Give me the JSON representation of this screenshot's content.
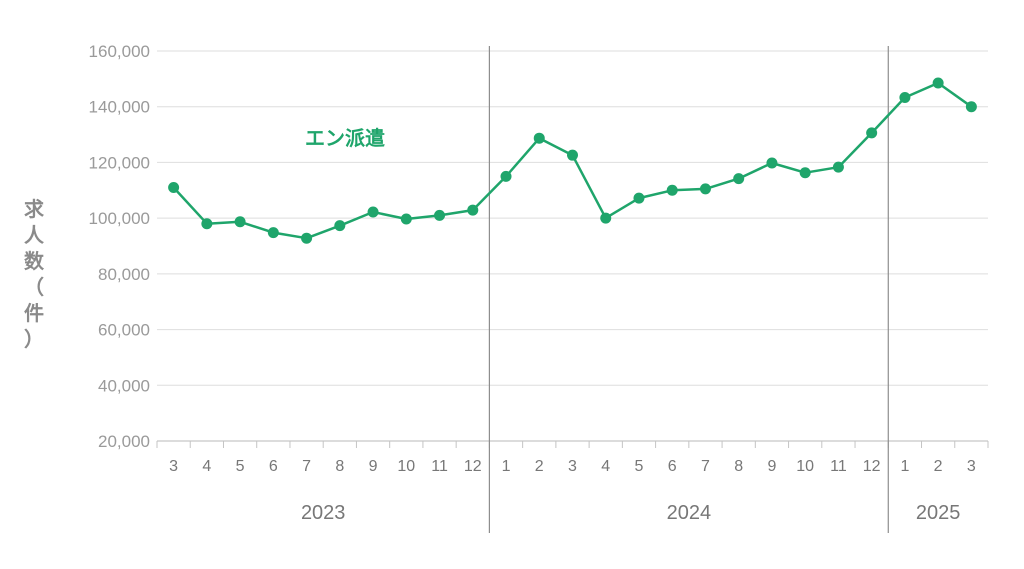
{
  "chart_data": {
    "type": "line",
    "ylabel": "求人数（件）",
    "ylabel_chars": [
      "求",
      "人",
      "数",
      "（",
      "件",
      "）"
    ],
    "ylim": [
      20000,
      160000
    ],
    "yticks": [
      "20,000",
      "40,000",
      "60,000",
      "80,000",
      "100,000",
      "120,000",
      "140,000",
      "160,000"
    ],
    "categories": [
      "3",
      "4",
      "5",
      "6",
      "7",
      "8",
      "9",
      "10",
      "11",
      "12",
      "1",
      "2",
      "3",
      "4",
      "5",
      "6",
      "7",
      "8",
      "9",
      "10",
      "11",
      "12",
      "1",
      "2",
      "3"
    ],
    "years": [
      {
        "label": "2023",
        "from": 0,
        "to": 9
      },
      {
        "label": "2024",
        "from": 10,
        "to": 21
      },
      {
        "label": "2025",
        "from": 22,
        "to": 24
      }
    ],
    "series": [
      {
        "name": "エン派遣",
        "color": "#1fa56b",
        "values": [
          111000,
          98000,
          98700,
          94800,
          92800,
          97300,
          102200,
          99700,
          101000,
          102900,
          115000,
          128700,
          122600,
          100000,
          107200,
          110000,
          110500,
          114200,
          119800,
          116300,
          118300,
          130600,
          143300,
          148500,
          140000
        ]
      }
    ],
    "grid": true
  }
}
